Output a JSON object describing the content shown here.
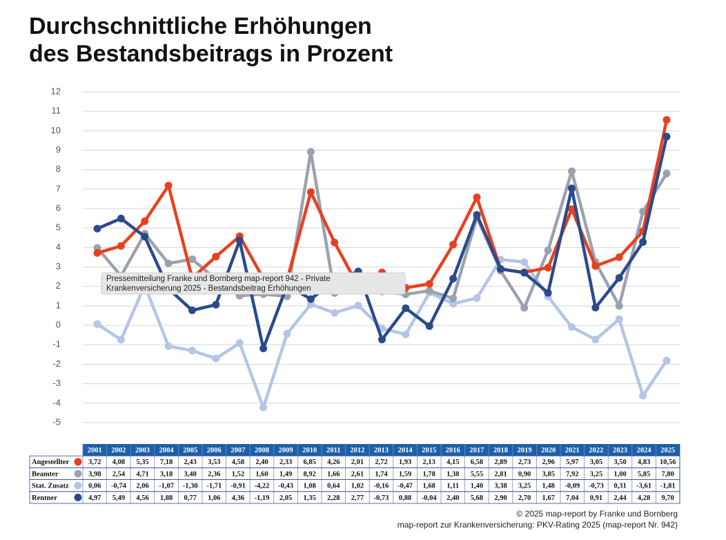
{
  "chart_data": {
    "type": "line",
    "title": [
      "Durchschnittliche Erhöhungen",
      "des Bestandsbeitrags in Prozent"
    ],
    "categories": [
      "2001",
      "2002",
      "2003",
      "2004",
      "2005",
      "2006",
      "2007",
      "2008",
      "2009",
      "2010",
      "2011",
      "2012",
      "2013",
      "2014",
      "2015",
      "2016",
      "2017",
      "2018",
      "2019",
      "2020",
      "2021",
      "2022",
      "2023",
      "2024",
      "2025"
    ],
    "ylim": [
      -5,
      12
    ],
    "yticks": [
      -5,
      -4,
      -3,
      -2,
      -1,
      0,
      1,
      2,
      3,
      4,
      5,
      6,
      7,
      8,
      9,
      10,
      11,
      12
    ],
    "grid": true,
    "series": [
      {
        "name": "Angestellter",
        "color": "#e8401f",
        "values": [
          3.72,
          4.08,
          5.35,
          7.18,
          2.43,
          3.53,
          4.58,
          2.4,
          2.33,
          6.85,
          4.26,
          2.01,
          2.72,
          1.93,
          2.13,
          4.15,
          6.58,
          2.89,
          2.73,
          2.96,
          5.97,
          3.05,
          3.5,
          4.83,
          10.56
        ],
        "value_labels": [
          "3,72",
          "4,08",
          "5,35",
          "7,18",
          "2,43",
          "3,53",
          "4,58",
          "2,40",
          "2,33",
          "6,85",
          "4,26",
          "2,01",
          "2,72",
          "1,93",
          "2,13",
          "4,15",
          "6,58",
          "2,89",
          "2,73",
          "2,96",
          "5,97",
          "3,05",
          "3,50",
          "4,83",
          "10,56"
        ]
      },
      {
        "name": "Beamter",
        "color": "#9aa3ad",
        "values": [
          3.98,
          2.54,
          4.71,
          3.18,
          3.4,
          2.36,
          1.52,
          1.6,
          1.49,
          8.92,
          1.66,
          2.61,
          1.74,
          1.59,
          1.78,
          1.38,
          5.55,
          2.81,
          0.9,
          3.85,
          7.92,
          3.25,
          1.0,
          5.85,
          7.8
        ],
        "value_labels": [
          "3,98",
          "2,54",
          "4,71",
          "3,18",
          "3,40",
          "2,36",
          "1,52",
          "1,60",
          "1,49",
          "8,92",
          "1,66",
          "2,61",
          "1,74",
          "1,59",
          "1,78",
          "1,38",
          "5,55",
          "2,81",
          "0,90",
          "3,85",
          "7,92",
          "3,25",
          "1,00",
          "5,85",
          "7,80"
        ]
      },
      {
        "name": "Stat. Zusatz",
        "color": "#b4c5e6",
        "values": [
          0.06,
          -0.74,
          2.06,
          -1.07,
          -1.3,
          -1.71,
          -0.91,
          -4.22,
          -0.43,
          1.08,
          0.64,
          1.02,
          -0.16,
          -0.47,
          1.68,
          1.11,
          1.4,
          3.38,
          3.25,
          1.48,
          -0.09,
          -0.73,
          0.31,
          -3.61,
          -1.81
        ],
        "value_labels": [
          "0,06",
          "-0,74",
          "2,06",
          "-1,07",
          "-1,30",
          "-1,71",
          "-0,91",
          "-4,22",
          "-0,43",
          "1,08",
          "0,64",
          "1,02",
          "-0,16",
          "-0,47",
          "1,68",
          "1,11",
          "1,40",
          "3,38",
          "3,25",
          "1,48",
          "-0,09",
          "-0,73",
          "0,31",
          "-3,61",
          "-1,81"
        ]
      },
      {
        "name": "Rentner",
        "color": "#2b4a8c",
        "values": [
          4.97,
          5.49,
          4.56,
          1.88,
          0.77,
          1.06,
          4.36,
          -1.19,
          2.05,
          1.35,
          2.28,
          2.77,
          -0.73,
          0.88,
          -0.04,
          2.4,
          5.68,
          2.9,
          2.7,
          1.67,
          7.04,
          0.91,
          2.44,
          4.28,
          9.7
        ],
        "value_labels": [
          "4,97",
          "5,49",
          "4,56",
          "1,88",
          "0,77",
          "1,06",
          "4,36",
          "-1,19",
          "2,05",
          "1,35",
          "2,28",
          "2,77",
          "-0,73",
          "0,88",
          "-0,04",
          "2,40",
          "5,68",
          "2,90",
          "2,70",
          "1,67",
          "7,04",
          "0,91",
          "2,44",
          "4,28",
          "9,70"
        ]
      }
    ],
    "tooltip": [
      "Pressemitteilung Franke und Bornberg map-report 942 - Private",
      "Krankenversicherung 2025 - Bestandsbeitrag Erhöhungen"
    ],
    "footer": [
      "© 2025 map-report by Franke und Bornberg",
      "map-report zur Krankenversicherung: PKV-Rating 2025 (map-report Nr. 942)"
    ]
  }
}
